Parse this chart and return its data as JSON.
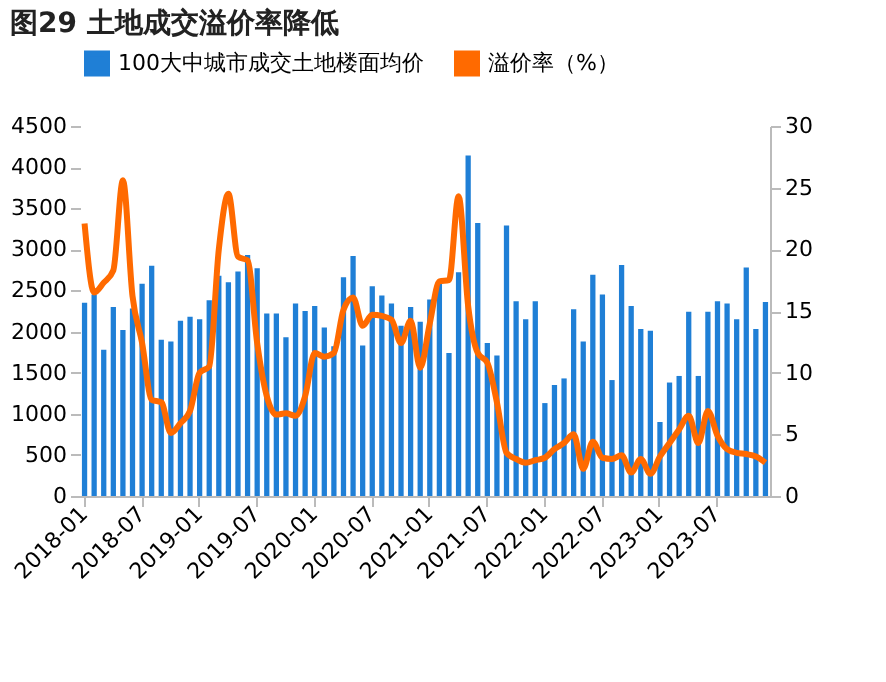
{
  "chart_data": {
    "type": "bar",
    "title": "图29 土地成交溢价率降低",
    "categories": [
      "2018-01",
      null,
      null,
      null,
      null,
      null,
      "2018-07",
      null,
      null,
      null,
      null,
      null,
      "2019-01",
      null,
      null,
      null,
      null,
      null,
      "2019-07",
      null,
      null,
      null,
      null,
      null,
      "2020-01",
      null,
      null,
      null,
      null,
      null,
      "2020-07",
      null,
      null,
      null,
      null,
      null,
      "2021-01",
      null,
      null,
      null,
      null,
      null,
      "2021-07",
      null,
      null,
      null,
      null,
      null,
      "2022-01",
      null,
      null,
      null,
      null,
      null,
      "2022-07",
      null,
      null,
      null,
      null,
      null,
      "2023-01",
      null,
      null,
      null,
      null,
      null,
      "2023-07",
      null,
      null,
      null,
      null,
      null
    ],
    "series": [
      {
        "name": "100大中城市成交土地楼面均价",
        "color": "#1f7fd6",
        "values": [
          2350,
          2450,
          1780,
          2300,
          2020,
          2280,
          2580,
          2800,
          1900,
          1880,
          2130,
          2180,
          2150,
          2380,
          2680,
          2600,
          2730,
          2930,
          2770,
          2220,
          2220,
          1930,
          2340,
          2250,
          2310,
          2050,
          1820,
          2660,
          2920,
          1830,
          2550,
          2440,
          2340,
          2070,
          2300,
          2120,
          2390,
          2600,
          1740,
          2720,
          4140,
          3320,
          1860,
          1710,
          3290,
          2370,
          2150,
          2370,
          1130,
          1350,
          1430,
          2270,
          1880,
          2690,
          2450,
          1410,
          2810,
          2310,
          2030,
          2010,
          900,
          1380,
          1460,
          2240,
          1460,
          2240,
          2370,
          2340,
          2150,
          2780,
          2030,
          2360
        ]
      },
      {
        "name": "溢价率（%）",
        "type": "line",
        "axis": "y2",
        "color": "#ff6a00",
        "values": [
          22.1,
          16.5,
          17.3,
          18.3,
          25.6,
          16.2,
          12.4,
          7.8,
          7.6,
          5.1,
          5.9,
          6.9,
          10.0,
          10.5,
          20.0,
          24.5,
          19.4,
          19.1,
          12.4,
          8.1,
          6.6,
          6.7,
          6.5,
          8.1,
          11.6,
          11.3,
          11.6,
          15.1,
          16.1,
          13.8,
          14.7,
          14.6,
          14.3,
          12.4,
          14.2,
          10.4,
          14.0,
          17.4,
          17.5,
          24.3,
          15.4,
          11.6,
          10.8,
          7.6,
          3.5,
          3.0,
          2.7,
          2.9,
          3.1,
          3.8,
          4.3,
          5.0,
          2.2,
          4.4,
          3.1,
          3.0,
          3.3,
          1.9,
          3.0,
          1.8,
          3.2,
          4.3,
          5.4,
          6.5,
          4.3,
          6.9,
          4.9,
          3.8,
          3.5,
          3.4,
          3.2,
          2.7
        ]
      }
    ],
    "ylim": [
      0,
      4500
    ],
    "yticks": [
      0,
      500,
      1000,
      1500,
      2000,
      2500,
      3000,
      3500,
      4000,
      4500
    ],
    "y2lim": [
      0,
      30
    ],
    "y2ticks": [
      0,
      5,
      10,
      15,
      20,
      25,
      30
    ],
    "grid": false,
    "legend": "top"
  }
}
